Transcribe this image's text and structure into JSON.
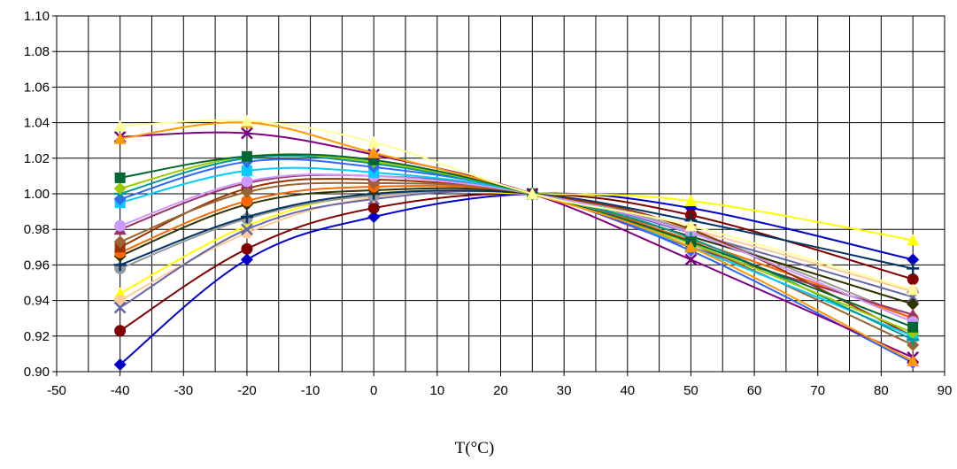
{
  "chart_data": {
    "type": "line",
    "title": "",
    "xlabel": "T(°C)",
    "ylabel": "",
    "xlim": [
      -50,
      90
    ],
    "ylim": [
      0.9,
      1.1
    ],
    "x_ticks": [
      -50,
      -40,
      -30,
      -20,
      -10,
      0,
      10,
      20,
      30,
      40,
      50,
      60,
      70,
      80,
      90
    ],
    "y_ticks": [
      0.9,
      0.92,
      0.94,
      0.96,
      0.98,
      1.0,
      1.02,
      1.04,
      1.06,
      1.08,
      1.1
    ],
    "grid": true,
    "legend": "none",
    "x": [
      -40,
      -20,
      0,
      25,
      50,
      85
    ],
    "series": [
      {
        "color": "#0000CC",
        "marker": "diamond",
        "values": [
          0.904,
          0.963,
          0.987,
          1.0,
          0.992,
          0.963
        ]
      },
      {
        "color": "#800000",
        "marker": "circle",
        "values": [
          0.923,
          0.969,
          0.992,
          1.0,
          0.988,
          0.952
        ]
      },
      {
        "color": "#FFFF00",
        "marker": "triangle",
        "values": [
          0.944,
          0.982,
          1.0,
          1.0,
          0.996,
          0.974
        ]
      },
      {
        "color": "#FFCC99",
        "marker": "circle",
        "values": [
          0.94,
          0.978,
          0.998,
          1.0,
          0.98,
          0.945
        ]
      },
      {
        "color": "#6666AA",
        "marker": "x",
        "values": [
          0.936,
          0.98,
          0.997,
          1.0,
          0.978,
          0.942
        ]
      },
      {
        "color": "#999999",
        "marker": "circle",
        "values": [
          0.958,
          0.986,
          0.999,
          1.0,
          0.979,
          0.93
        ]
      },
      {
        "color": "#003366",
        "marker": "plus",
        "values": [
          0.96,
          0.987,
          1.0,
          1.0,
          0.985,
          0.958
        ]
      },
      {
        "color": "#333300",
        "marker": "diamond",
        "values": [
          0.965,
          0.994,
          1.002,
          1.0,
          0.976,
          0.938
        ]
      },
      {
        "color": "#FF6600",
        "marker": "circle",
        "values": [
          0.967,
          0.996,
          1.004,
          1.0,
          0.974,
          0.93
        ]
      },
      {
        "color": "#993300",
        "marker": "square",
        "values": [
          0.97,
          1.003,
          1.008,
          1.0,
          0.98,
          0.92
        ]
      },
      {
        "color": "#996633",
        "marker": "diamond",
        "values": [
          0.973,
          1.001,
          1.006,
          1.0,
          0.972,
          0.915
        ]
      },
      {
        "color": "#993366",
        "marker": "triangle",
        "values": [
          0.98,
          1.006,
          1.01,
          1.0,
          0.97,
          0.932
        ]
      },
      {
        "color": "#CC99FF",
        "marker": "circle",
        "values": [
          0.982,
          1.007,
          1.01,
          1.0,
          0.978,
          0.928
        ]
      },
      {
        "color": "#00CCFF",
        "marker": "square",
        "values": [
          0.995,
          1.013,
          1.012,
          1.0,
          0.97,
          0.92
        ]
      },
      {
        "color": "#3366FF",
        "marker": "diamond",
        "values": [
          0.997,
          1.018,
          1.015,
          1.0,
          0.968,
          0.905
        ]
      },
      {
        "color": "#009999",
        "marker": "plus",
        "values": [
          1.0,
          1.02,
          1.017,
          1.0,
          0.975,
          0.918
        ]
      },
      {
        "color": "#99CC00",
        "marker": "diamond",
        "values": [
          1.003,
          1.021,
          1.018,
          1.0,
          0.972,
          0.922
        ]
      },
      {
        "color": "#006633",
        "marker": "square",
        "values": [
          1.009,
          1.021,
          1.019,
          1.0,
          0.973,
          0.925
        ]
      },
      {
        "color": "#800080",
        "marker": "x",
        "values": [
          1.032,
          1.034,
          1.022,
          1.0,
          0.963,
          0.908
        ]
      },
      {
        "color": "#FF9900",
        "marker": "triangle",
        "values": [
          1.031,
          1.04,
          1.023,
          1.0,
          0.97,
          0.906
        ]
      },
      {
        "color": "#FFFF99",
        "marker": "triangle",
        "values": [
          1.038,
          1.041,
          1.029,
          1.0,
          0.982,
          0.946
        ]
      }
    ]
  }
}
